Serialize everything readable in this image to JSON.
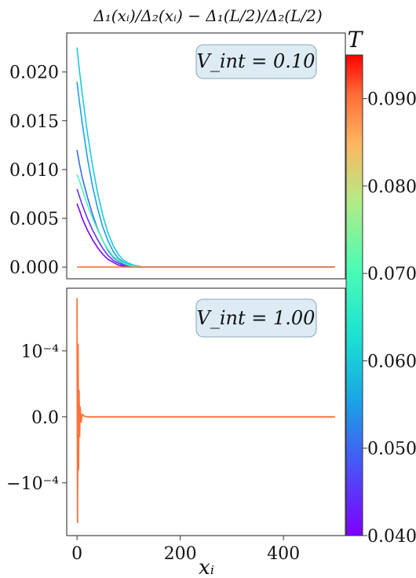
{
  "figure": {
    "title": "Δ₁(xᵢ)/Δ₂(xᵢ) − Δ₁(L/2)/Δ₂(L/2)",
    "xlabel": "xᵢ",
    "x_ticks": [
      "0",
      "200",
      "400"
    ],
    "colorbar": {
      "label": "T",
      "ticks": [
        "0.090",
        "0.080",
        "0.070",
        "0.060",
        "0.050",
        "0.040"
      ],
      "min": 0.04,
      "max": 0.095,
      "colormap": "rainbow"
    }
  },
  "chart_data": [
    {
      "type": "line",
      "panel": "top",
      "annotation": "V_int = 0.10",
      "y_ticks": [
        "0.020",
        "0.015",
        "0.010",
        "0.005",
        "0.000"
      ],
      "xlim": [
        -20,
        520
      ],
      "ylim": [
        -0.0012,
        0.024
      ],
      "x": [
        0,
        5,
        10,
        20,
        30,
        40,
        50,
        60,
        70,
        80,
        90,
        100,
        110,
        120,
        130,
        140,
        500
      ],
      "series": [
        {
          "T": 0.04,
          "values": [
            0.0065,
            0.0058,
            0.005,
            0.0038,
            0.0028,
            0.002,
            0.0013,
            0.0008,
            0.0005,
            0.0002,
            0.0001,
            5e-05,
            2e-05,
            1e-05,
            0.0,
            0.0,
            0.0
          ]
        },
        {
          "T": 0.045,
          "values": [
            0.008,
            0.0072,
            0.0064,
            0.005,
            0.0038,
            0.0028,
            0.0019,
            0.0012,
            0.0007,
            0.0004,
            0.0002,
            0.0001,
            5e-05,
            2e-05,
            0.0,
            0.0,
            0.0
          ]
        },
        {
          "T": 0.05,
          "values": [
            0.012,
            0.0105,
            0.0092,
            0.0072,
            0.0054,
            0.0039,
            0.0027,
            0.0017,
            0.001,
            0.0006,
            0.0003,
            0.00015,
            7e-05,
            3e-05,
            0.0,
            0.0,
            0.0
          ]
        },
        {
          "T": 0.055,
          "values": [
            0.019,
            0.0168,
            0.0148,
            0.0112,
            0.0083,
            0.006,
            0.0041,
            0.0027,
            0.0016,
            0.0009,
            0.0005,
            0.00025,
            0.0001,
            5e-05,
            0.0,
            0.0,
            0.0
          ]
        },
        {
          "T": 0.06,
          "values": [
            0.0225,
            0.02,
            0.0178,
            0.0138,
            0.0104,
            0.0076,
            0.0053,
            0.0035,
            0.0022,
            0.0013,
            0.0007,
            0.0004,
            0.0002,
            0.0001,
            0.0,
            0.0,
            0.0
          ]
        },
        {
          "T": 0.07,
          "values": [
            0.0095,
            0.0088,
            0.008,
            0.0064,
            0.005,
            0.0038,
            0.0027,
            0.0018,
            0.0011,
            0.0007,
            0.0004,
            0.0002,
            0.0001,
            5e-05,
            0.0,
            0.0,
            0.0
          ]
        },
        {
          "T": 0.09,
          "values": [
            0.0,
            0.0,
            0.0,
            0.0,
            0.0,
            0.0,
            0.0,
            0.0,
            0.0,
            0.0,
            0.0,
            0.0,
            0.0,
            0.0,
            0.0,
            0.0,
            0.0
          ]
        }
      ]
    },
    {
      "type": "line",
      "panel": "bottom",
      "annotation": "V_int = 1.00",
      "y_ticks": [
        "10⁻⁴",
        "0.0",
        "−10⁻⁴"
      ],
      "xlim": [
        -20,
        520
      ],
      "ylim": [
        -0.00018,
        0.000195
      ],
      "x": [
        0,
        1,
        2,
        3,
        4,
        5,
        6,
        8,
        10,
        14,
        20,
        30,
        500
      ],
      "series": [
        {
          "T": 0.09,
          "values": [
            0.00018,
            -0.00016,
            0.00011,
            -8e-05,
            4e-05,
            -3e-05,
            1.5e-05,
            -8e-06,
            4e-06,
            1e-06,
            0.0,
            0.0,
            0.0
          ]
        }
      ]
    }
  ]
}
